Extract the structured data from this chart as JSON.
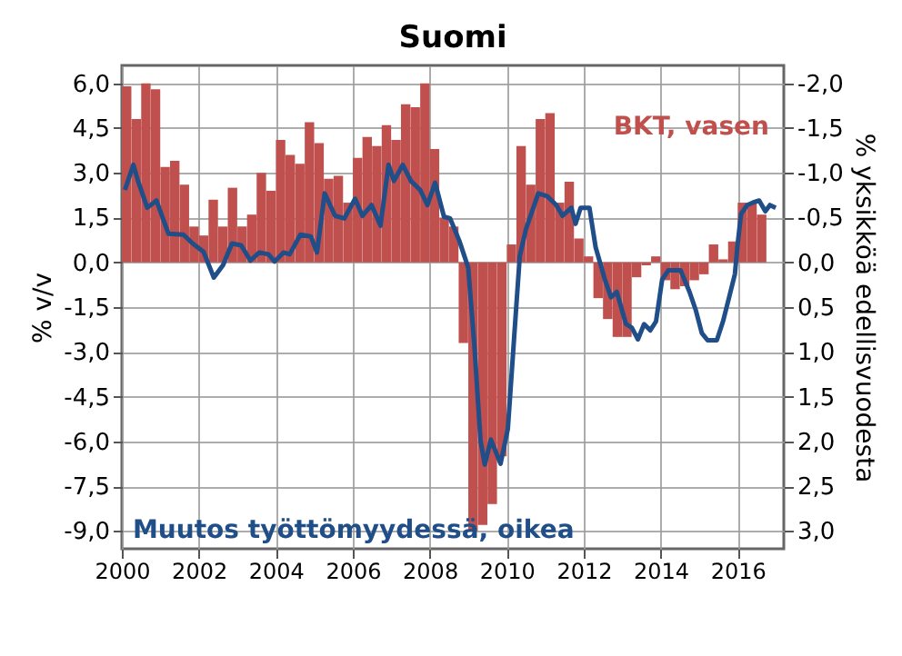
{
  "chart_data": {
    "type": "bar",
    "title": "Suomi",
    "ylabel": "% v/v",
    "y2label": "% yksikköä edellisvuodesta",
    "xlim": [
      2000,
      2017.2
    ],
    "xticks": [
      2000,
      2002,
      2004,
      2006,
      2008,
      2010,
      2012,
      2014,
      2016
    ],
    "ylim": [
      -9.6,
      6.6
    ],
    "yticks": [
      {
        "value": 6,
        "label": "6,0"
      },
      {
        "value": 4.5,
        "label": "4,5"
      },
      {
        "value": 3,
        "label": "3,0"
      },
      {
        "value": 1.5,
        "label": "1,5"
      },
      {
        "value": 0,
        "label": "0,0"
      },
      {
        "value": -1.5,
        "label": "-1,5"
      },
      {
        "value": -3,
        "label": "-3,0"
      },
      {
        "value": -4.5,
        "label": "-4,5"
      },
      {
        "value": -6,
        "label": "-6,0"
      },
      {
        "value": -7.5,
        "label": "-7,5"
      },
      {
        "value": -9,
        "label": "-9,0"
      }
    ],
    "y2lim": [
      3.2,
      -2.2
    ],
    "y2ticks": [
      {
        "value": -2,
        "label": "-2,0"
      },
      {
        "value": -1.5,
        "label": "-1,5"
      },
      {
        "value": -1,
        "label": "-1,0"
      },
      {
        "value": -0.5,
        "label": "-0,5"
      },
      {
        "value": 0,
        "label": "0,0"
      },
      {
        "value": 0.5,
        "label": "0,5"
      },
      {
        "value": 1,
        "label": "1,0"
      },
      {
        "value": 1.5,
        "label": "1,5"
      },
      {
        "value": 2,
        "label": "2,0"
      },
      {
        "value": 2.5,
        "label": "2,5"
      },
      {
        "value": 3,
        "label": "3,0"
      }
    ],
    "grid": true,
    "series": [
      {
        "name": "BKT, vasen",
        "color": "#c0504d",
        "x": [
          2000.125,
          2000.375,
          2000.625,
          2000.875,
          2001.125,
          2001.375,
          2001.625,
          2001.875,
          2002.125,
          2002.375,
          2002.625,
          2002.875,
          2003.125,
          2003.375,
          2003.625,
          2003.875,
          2004.125,
          2004.375,
          2004.625,
          2004.875,
          2005.125,
          2005.375,
          2005.625,
          2005.875,
          2006.125,
          2006.375,
          2006.625,
          2006.875,
          2007.125,
          2007.375,
          2007.625,
          2007.875,
          2008.125,
          2008.375,
          2008.625,
          2008.875,
          2009.125,
          2009.375,
          2009.625,
          2009.875,
          2010.125,
          2010.375,
          2010.625,
          2010.875,
          2011.125,
          2011.375,
          2011.625,
          2011.875,
          2012.125,
          2012.375,
          2012.625,
          2012.875,
          2013.125,
          2013.375,
          2013.625,
          2013.875,
          2014.125,
          2014.375,
          2014.625,
          2014.875,
          2015.125,
          2015.375,
          2015.625,
          2015.875,
          2016.125,
          2016.375,
          2016.625
        ],
        "values": [
          5.9,
          4.8,
          6.0,
          5.8,
          3.2,
          3.4,
          2.6,
          1.2,
          0.9,
          2.1,
          1.2,
          2.5,
          1.2,
          1.6,
          3.0,
          2.4,
          4.1,
          3.6,
          3.3,
          4.7,
          4.0,
          2.8,
          2.9,
          2.0,
          3.5,
          4.2,
          3.9,
          4.6,
          4.1,
          5.3,
          5.2,
          6.0,
          3.8,
          1.5,
          1.2,
          -2.7,
          -9.0,
          -8.8,
          -8.1,
          -6.5,
          0.6,
          3.9,
          2.6,
          4.8,
          5.0,
          2.0,
          2.7,
          0.8,
          0.2,
          -1.2,
          -1.9,
          -2.5,
          -2.5,
          -0.5,
          -0.1,
          0.2,
          -0.6,
          -0.9,
          -0.8,
          -0.6,
          -0.4,
          0.6,
          0.1,
          0.7,
          2.0,
          2.0,
          1.6
        ]
      },
      {
        "name": "Muutos työttömyydessä, oikea",
        "type": "line",
        "axis": "y2",
        "color": "#1f4e89",
        "x": [
          2000.08,
          2000.3,
          2000.42,
          2000.66,
          2000.9,
          2001.21,
          2001.6,
          2001.84,
          2002.12,
          2002.39,
          2002.63,
          2002.86,
          2003.1,
          2003.34,
          2003.57,
          2003.81,
          2003.97,
          2004.2,
          2004.36,
          2004.64,
          2004.91,
          2005.07,
          2005.27,
          2005.54,
          2005.78,
          2006.06,
          2006.25,
          2006.49,
          2006.72,
          2006.93,
          2007.07,
          2007.3,
          2007.51,
          2007.75,
          2007.94,
          2008.14,
          2008.37,
          2008.53,
          2008.77,
          2009.0,
          2009.16,
          2009.32,
          2009.43,
          2009.59,
          2009.84,
          2010.03,
          2010.19,
          2010.34,
          2010.5,
          2010.82,
          2011.05,
          2011.29,
          2011.45,
          2011.68,
          2011.79,
          2011.92,
          2012.15,
          2012.31,
          2012.55,
          2012.71,
          2012.86,
          2013.1,
          2013.25,
          2013.41,
          2013.57,
          2013.73,
          2013.88,
          2014.04,
          2014.2,
          2014.52,
          2014.75,
          2014.91,
          2015.07,
          2015.22,
          2015.46,
          2015.62,
          2015.78,
          2015.93,
          2016.0,
          2016.09,
          2016.25,
          2016.41,
          2016.56,
          2016.72,
          2016.84,
          2016.99
        ],
        "values": [
          -0.81,
          -1.09,
          -0.91,
          -0.61,
          -0.69,
          -0.32,
          -0.31,
          -0.21,
          -0.12,
          0.17,
          0.03,
          -0.21,
          -0.19,
          -0.02,
          -0.11,
          -0.09,
          -0.01,
          -0.11,
          -0.09,
          -0.31,
          -0.29,
          -0.11,
          -0.77,
          -0.52,
          -0.49,
          -0.71,
          -0.52,
          -0.64,
          -0.41,
          -1.09,
          -0.91,
          -1.09,
          -0.91,
          -0.81,
          -0.64,
          -0.89,
          -0.51,
          -0.49,
          -0.24,
          0.06,
          0.93,
          1.99,
          2.26,
          1.98,
          2.25,
          1.86,
          0.86,
          -0.07,
          -0.37,
          -0.77,
          -0.74,
          -0.64,
          -0.52,
          -0.61,
          -0.43,
          -0.61,
          -0.61,
          -0.17,
          0.19,
          0.39,
          0.33,
          0.69,
          0.73,
          0.86,
          0.69,
          0.76,
          0.66,
          0.19,
          0.09,
          0.09,
          0.33,
          0.53,
          0.79,
          0.87,
          0.87,
          0.66,
          0.39,
          0.13,
          -0.2,
          -0.54,
          -0.64,
          -0.67,
          -0.69,
          -0.57,
          -0.64,
          -0.61
        ]
      }
    ]
  }
}
